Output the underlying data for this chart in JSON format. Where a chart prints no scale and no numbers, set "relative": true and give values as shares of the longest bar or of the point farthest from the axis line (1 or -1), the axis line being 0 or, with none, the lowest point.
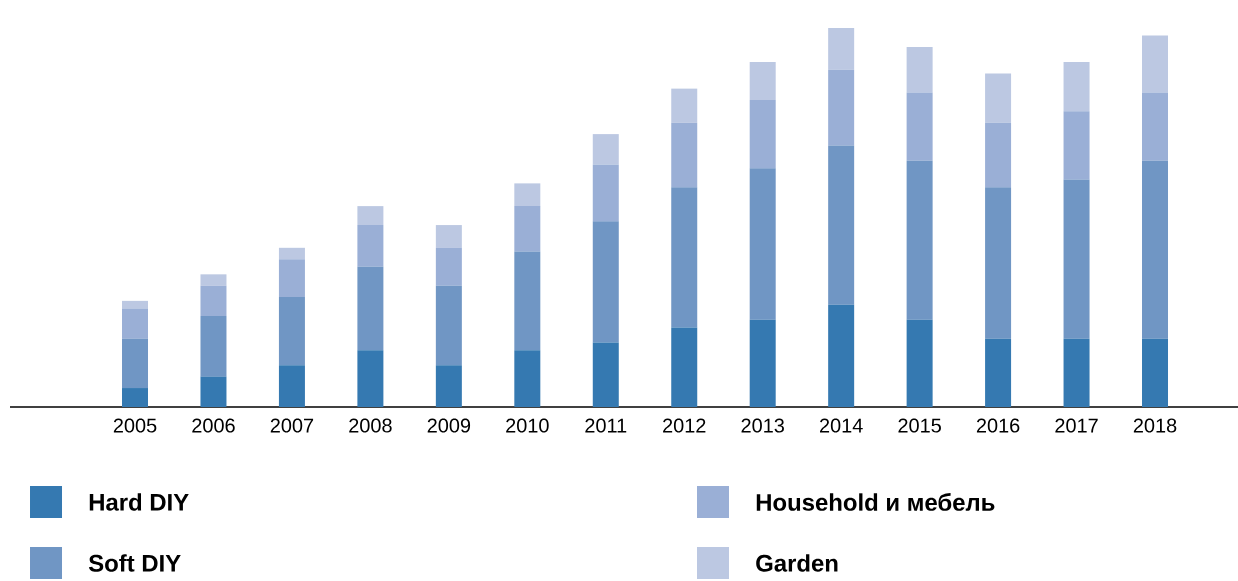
{
  "chart_data": {
    "type": "bar",
    "stacked": true,
    "relative": true,
    "legend": "bottom",
    "categories": [
      "2005",
      "2006",
      "2007",
      "2008",
      "2009",
      "2010",
      "2011",
      "2012",
      "2013",
      "2014",
      "2015",
      "2016",
      "2017",
      "2018"
    ],
    "series": [
      {
        "name": "Hard DIY",
        "color": "#3579b1",
        "values": [
          0.05,
          0.08,
          0.11,
          0.15,
          0.11,
          0.15,
          0.17,
          0.21,
          0.23,
          0.27,
          0.23,
          0.18,
          0.18,
          0.18
        ]
      },
      {
        "name": "Soft DIY",
        "color": "#7096c4",
        "values": [
          0.13,
          0.16,
          0.18,
          0.22,
          0.21,
          0.26,
          0.32,
          0.37,
          0.4,
          0.42,
          0.42,
          0.4,
          0.42,
          0.47
        ]
      },
      {
        "name": "Household и мебель",
        "color": "#9aafd6",
        "values": [
          0.08,
          0.08,
          0.1,
          0.11,
          0.1,
          0.12,
          0.15,
          0.17,
          0.18,
          0.2,
          0.18,
          0.17,
          0.18,
          0.18
        ]
      },
      {
        "name": "Garden",
        "color": "#bcc8e2",
        "values": [
          0.02,
          0.03,
          0.03,
          0.05,
          0.06,
          0.06,
          0.08,
          0.09,
          0.1,
          0.11,
          0.12,
          0.13,
          0.13,
          0.15
        ]
      }
    ]
  }
}
